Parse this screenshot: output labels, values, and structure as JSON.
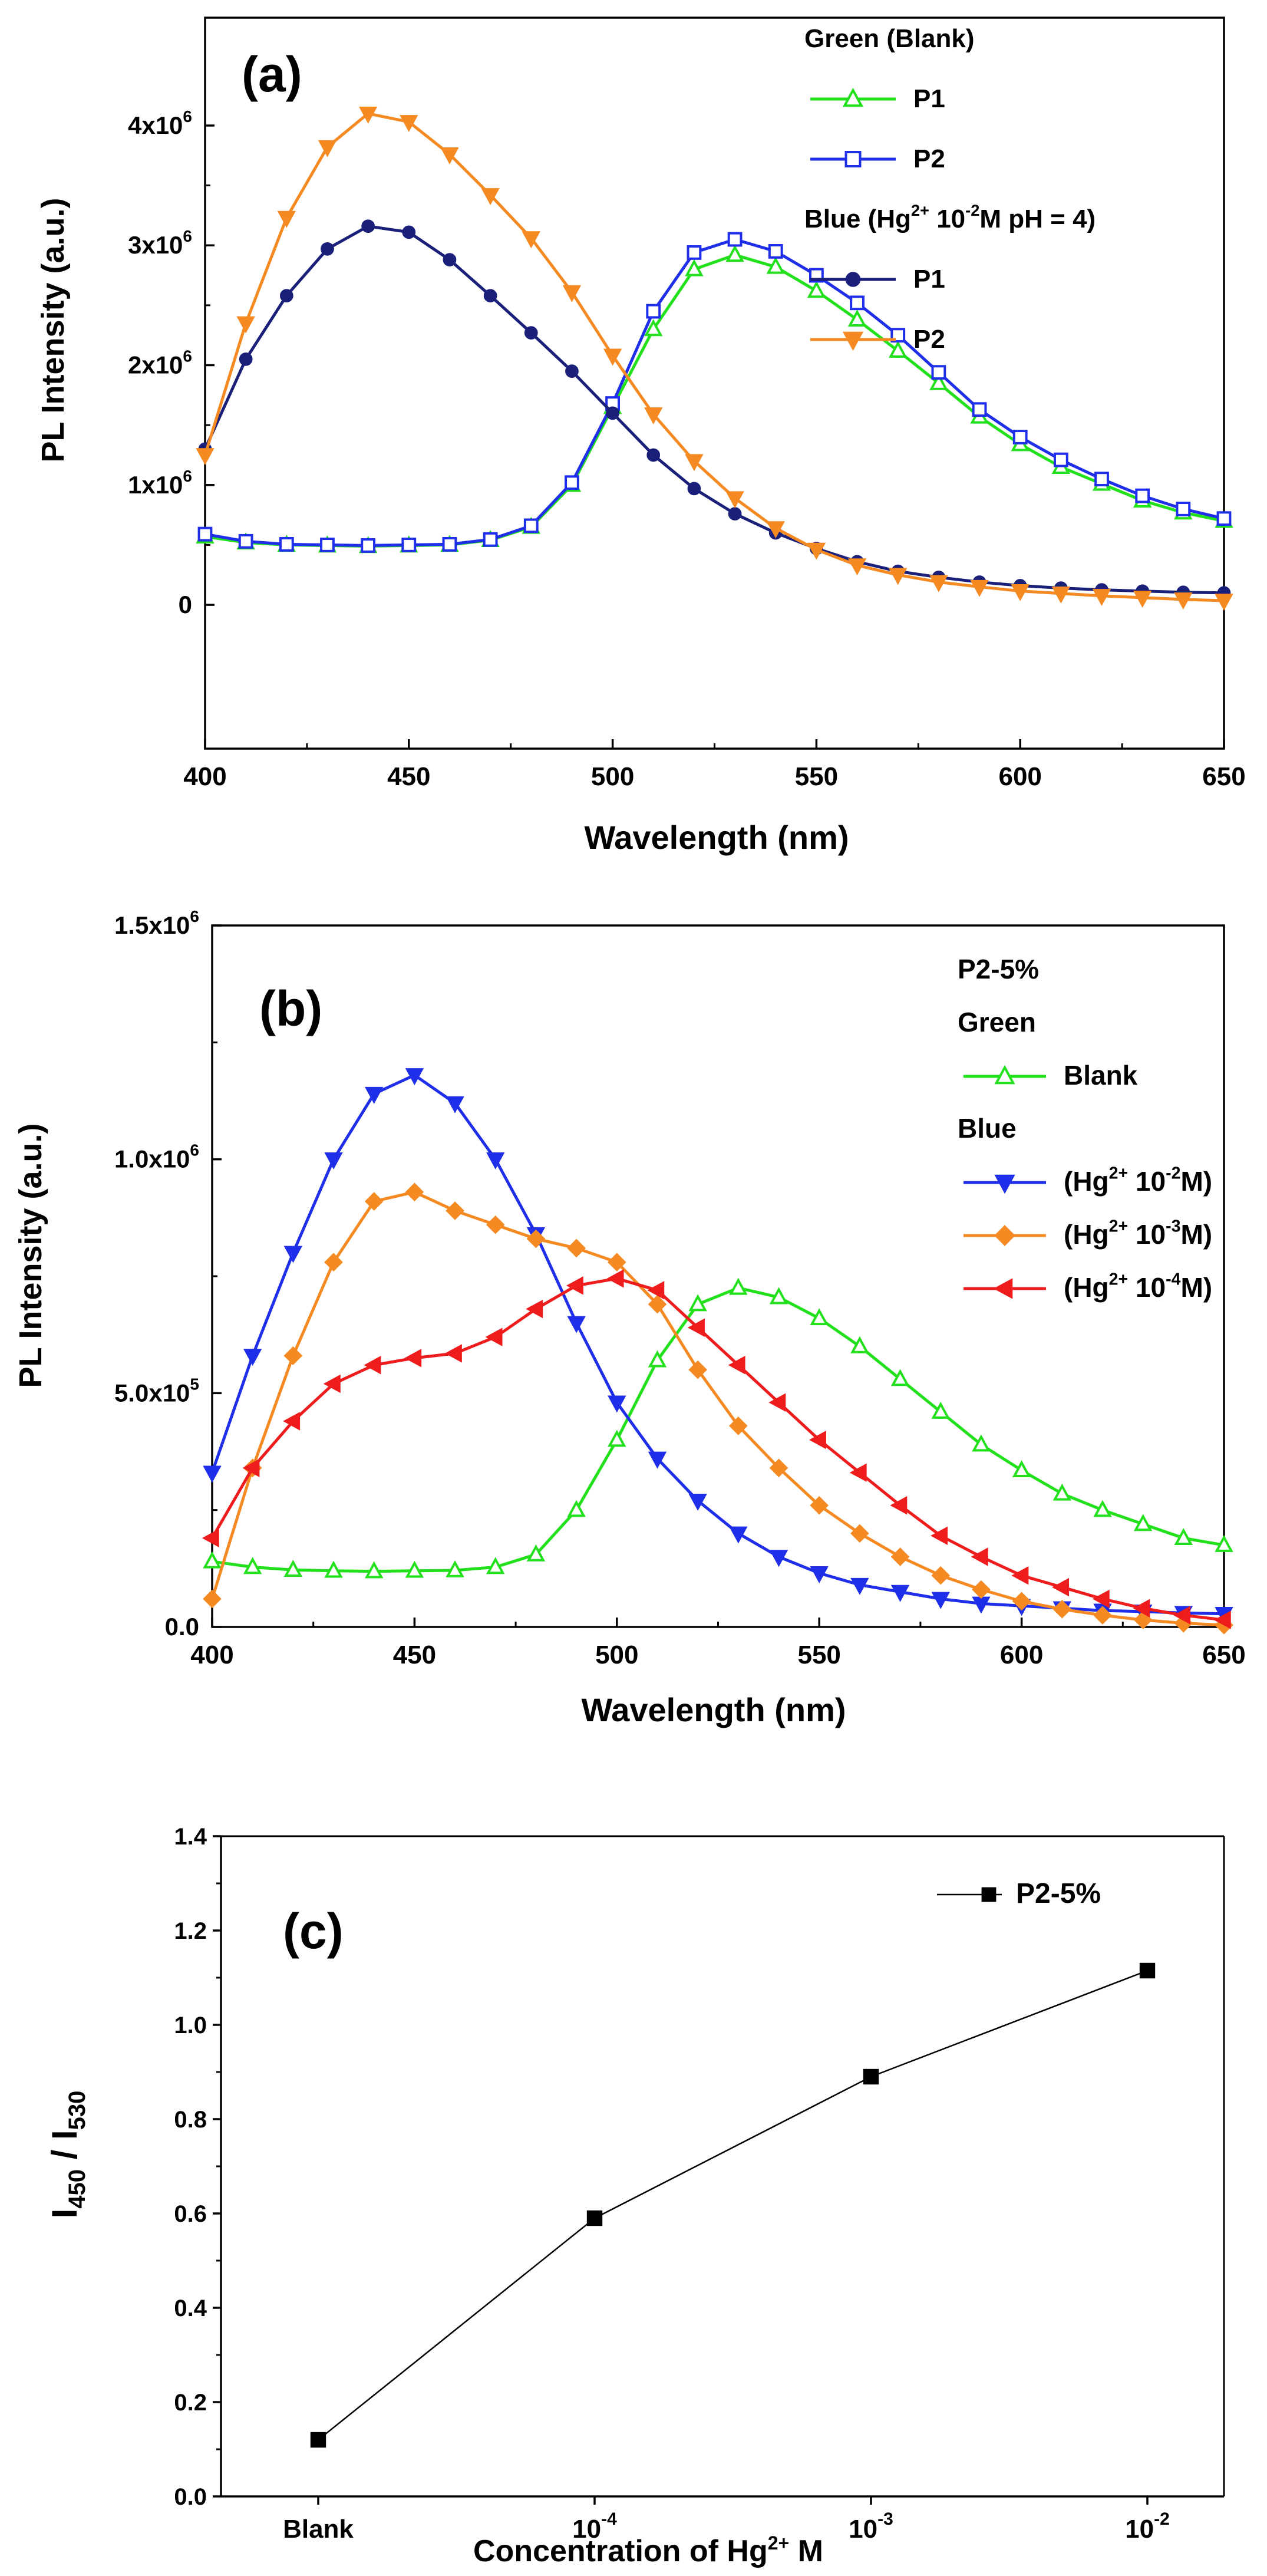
{
  "chart_data": [
    {
      "type": "line",
      "panel_label": "(a)",
      "xlabel": "Wavelength (nm)",
      "ylabel": "PL Intensity (a.u.)",
      "xlim": [
        400,
        650
      ],
      "ylim": [
        -1200000,
        4900000
      ],
      "x_ticks": [
        400,
        450,
        500,
        550,
        600,
        650
      ],
      "x_tick_labels": [
        "400",
        "450",
        "500",
        "550",
        "600",
        "650"
      ],
      "y_ticks": [
        0,
        1000000,
        2000000,
        3000000,
        4000000
      ],
      "y_tick_labels": [
        "0",
        "1x10",
        "2x10",
        "3x10",
        "4x10"
      ],
      "y_tick_sup": "6",
      "legend": [
        {
          "kind": "header",
          "text": "Green (Blank)"
        },
        {
          "kind": "entry",
          "series": 0,
          "text": "P1"
        },
        {
          "kind": "entry",
          "series": 1,
          "text": "P2"
        },
        {
          "kind": "header",
          "text": "Blue (Hg",
          "sup": "2+",
          "text2": " 10",
          "sup2": "-2",
          "text3": "M pH = 4)"
        },
        {
          "kind": "entry",
          "series": 2,
          "text": "P1"
        },
        {
          "kind": "entry",
          "series": 3,
          "text": "P2"
        }
      ],
      "x": [
        400,
        410,
        420,
        430,
        440,
        450,
        460,
        470,
        480,
        490,
        500,
        510,
        520,
        530,
        540,
        550,
        560,
        570,
        580,
        590,
        600,
        610,
        620,
        630,
        640,
        650
      ],
      "series": [
        {
          "name": "Green (Blank) P1",
          "color": "#22e01c",
          "marker": "triangle-up-open",
          "values": [
            570000,
            520000,
            500000,
            495000,
            490000,
            495000,
            500000,
            540000,
            650000,
            1000000,
            1650000,
            2300000,
            2800000,
            2920000,
            2820000,
            2620000,
            2380000,
            2120000,
            1850000,
            1570000,
            1340000,
            1150000,
            1010000,
            870000,
            770000,
            700000
          ]
        },
        {
          "name": "Green (Blank) P2",
          "color": "#1f2ee8",
          "marker": "square-open",
          "values": [
            590000,
            530000,
            505000,
            500000,
            495000,
            500000,
            505000,
            545000,
            660000,
            1020000,
            1680000,
            2450000,
            2940000,
            3050000,
            2950000,
            2750000,
            2520000,
            2250000,
            1940000,
            1630000,
            1400000,
            1210000,
            1050000,
            910000,
            800000,
            720000
          ]
        },
        {
          "name": "Blue (Hg2+ 10-2M pH = 4) P1",
          "color": "#1a1f7a",
          "marker": "circle-filled",
          "values": [
            1300000,
            2050000,
            2580000,
            2970000,
            3160000,
            3110000,
            2880000,
            2580000,
            2270000,
            1950000,
            1600000,
            1250000,
            970000,
            760000,
            600000,
            470000,
            360000,
            280000,
            230000,
            190000,
            160000,
            140000,
            125000,
            115000,
            105000,
            100000
          ]
        },
        {
          "name": "Blue (Hg2+ 10-2M pH = 4) P2",
          "color": "#f58a22",
          "marker": "triangle-down-filled",
          "values": [
            1250000,
            2350000,
            3230000,
            3820000,
            4100000,
            4030000,
            3760000,
            3420000,
            3060000,
            2610000,
            2080000,
            1590000,
            1200000,
            890000,
            640000,
            460000,
            330000,
            250000,
            190000,
            150000,
            115000,
            95000,
            75000,
            60000,
            45000,
            35000
          ]
        }
      ]
    },
    {
      "type": "line",
      "panel_label": "(b)",
      "xlabel": "Wavelength (nm)",
      "ylabel": "PL Intensity (a.u.)",
      "xlim": [
        400,
        650
      ],
      "ylim": [
        0,
        1500000
      ],
      "x_ticks": [
        400,
        450,
        500,
        550,
        600,
        650
      ],
      "x_tick_labels": [
        "400",
        "450",
        "500",
        "550",
        "600",
        "650"
      ],
      "y_ticks": [
        0,
        500000,
        1000000,
        1500000
      ],
      "y_tick_labels": [
        "0.0",
        "5.0x10",
        "1.0x10",
        "1.5x10"
      ],
      "y_tick_sups": [
        "",
        "5",
        "6",
        "6"
      ],
      "legend": [
        {
          "kind": "header",
          "text": "P2-5%"
        },
        {
          "kind": "header",
          "text": "Green"
        },
        {
          "kind": "entry",
          "series": 0,
          "text": "Blank"
        },
        {
          "kind": "header",
          "text": "Blue"
        },
        {
          "kind": "entry",
          "series": 1,
          "text": "(Hg",
          "sup": "2+",
          "text2": " 10",
          "sup2": "-2",
          "text3": "M)"
        },
        {
          "kind": "entry",
          "series": 2,
          "text": "(Hg",
          "sup": "2+",
          "text2": " 10",
          "sup2": "-3",
          "text3": "M)"
        },
        {
          "kind": "entry",
          "series": 3,
          "text": "(Hg",
          "sup": "2+",
          "text2": " 10",
          "sup2": "-4",
          "text3": "M)"
        }
      ],
      "x": [
        400,
        410,
        420,
        430,
        440,
        450,
        460,
        470,
        480,
        490,
        500,
        510,
        520,
        530,
        540,
        550,
        560,
        570,
        580,
        590,
        600,
        610,
        620,
        630,
        640,
        650
      ],
      "series": [
        {
          "name": "Blank",
          "color": "#22e01c",
          "marker": "triangle-up-open",
          "values": [
            140000,
            128000,
            122000,
            120000,
            119000,
            120000,
            121000,
            128000,
            155000,
            250000,
            400000,
            570000,
            690000,
            725000,
            705000,
            660000,
            600000,
            530000,
            460000,
            390000,
            335000,
            285000,
            250000,
            220000,
            190000,
            175000
          ]
        },
        {
          "name": "(Hg2+ 10-2M)",
          "color": "#1f2ee8",
          "marker": "triangle-down-filled",
          "values": [
            330000,
            580000,
            800000,
            1000000,
            1140000,
            1180000,
            1120000,
            1000000,
            840000,
            650000,
            480000,
            360000,
            270000,
            200000,
            150000,
            115000,
            90000,
            75000,
            60000,
            50000,
            45000,
            40000,
            35000,
            33000,
            30000,
            28000
          ]
        },
        {
          "name": "(Hg2+ 10-3M)",
          "color": "#f58a22",
          "marker": "diamond-filled",
          "values": [
            60000,
            340000,
            580000,
            780000,
            910000,
            930000,
            890000,
            860000,
            830000,
            810000,
            780000,
            690000,
            550000,
            430000,
            340000,
            260000,
            200000,
            150000,
            110000,
            80000,
            55000,
            38000,
            25000,
            15000,
            8000,
            4000
          ]
        },
        {
          "name": "(Hg2+ 10-4M)",
          "color": "#ee1c1c",
          "marker": "triangle-left-filled",
          "values": [
            190000,
            340000,
            440000,
            520000,
            560000,
            575000,
            585000,
            620000,
            680000,
            730000,
            745000,
            720000,
            640000,
            560000,
            480000,
            400000,
            330000,
            260000,
            195000,
            150000,
            110000,
            85000,
            60000,
            40000,
            25000,
            15000
          ]
        }
      ]
    },
    {
      "type": "line",
      "panel_label": "(c)",
      "xlabel": "Concentration of Hg",
      "xlabel_sup": "2+",
      "xlabel_tail": " M",
      "ylabel": "I",
      "ylabel_sub1": "450",
      "ylabel_mid": " / I",
      "ylabel_sub2": "530",
      "ylim": [
        0.0,
        1.4
      ],
      "y_ticks": [
        0.0,
        0.2,
        0.4,
        0.6,
        0.8,
        1.0,
        1.2,
        1.4
      ],
      "y_tick_labels": [
        "0.0",
        "0.2",
        "0.4",
        "0.6",
        "0.8",
        "1.0",
        "1.2",
        "1.4"
      ],
      "categories": [
        "Blank",
        "10",
        "10",
        "10"
      ],
      "category_sups": [
        "",
        "-4",
        "-3",
        "-2"
      ],
      "legend": [
        {
          "kind": "entry",
          "series": 0,
          "text": "P2-5%"
        }
      ],
      "series": [
        {
          "name": "P2-5%",
          "color": "#000000",
          "marker": "square-filled",
          "values": [
            0.12,
            0.59,
            0.89,
            1.115
          ]
        }
      ]
    }
  ]
}
